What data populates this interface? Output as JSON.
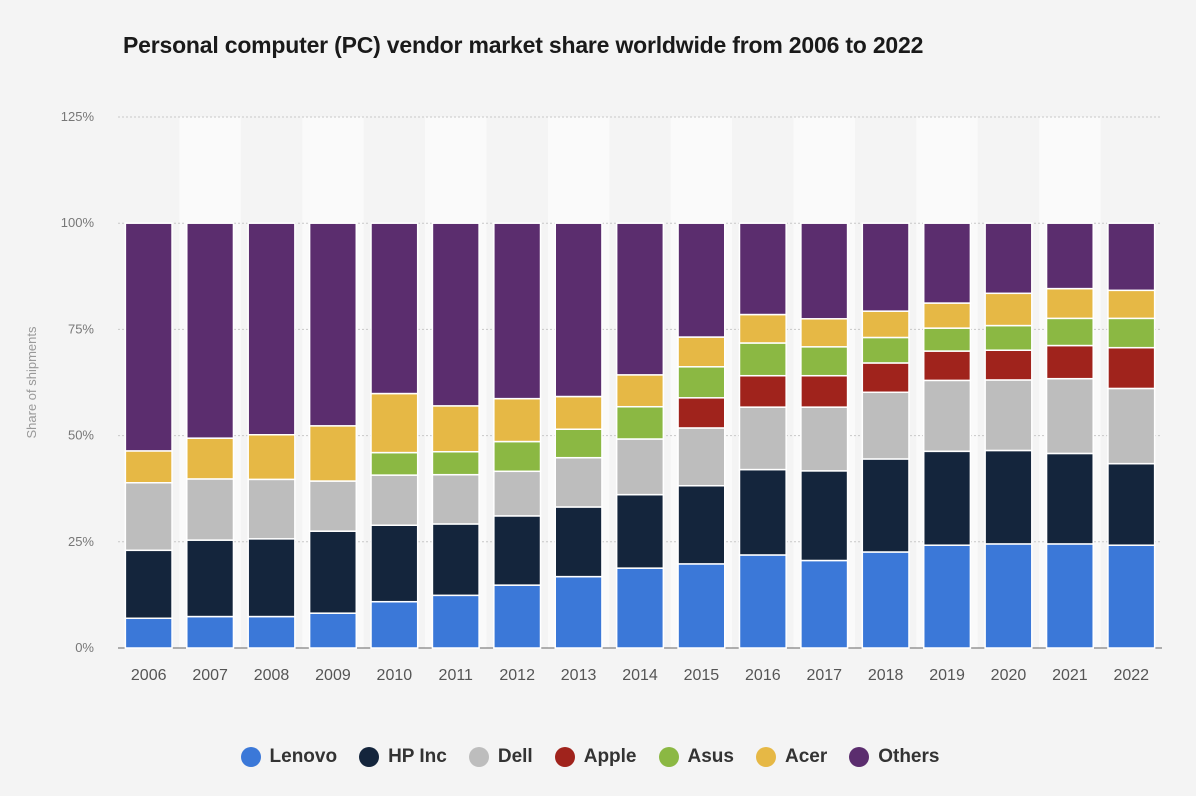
{
  "chart_data": {
    "type": "bar",
    "stacked": true,
    "title": "Personal computer (PC) vendor market share worldwide from 2006 to 2022",
    "xlabel": "",
    "ylabel": "Share of shipments",
    "ylim": [
      0,
      125
    ],
    "yticks": [
      0,
      25,
      50,
      75,
      100,
      125
    ],
    "ytick_labels": [
      "0%",
      "25%",
      "50%",
      "75%",
      "100%",
      "125%"
    ],
    "grid": true,
    "legend_position": "bottom-center",
    "categories": [
      "2006",
      "2007",
      "2008",
      "2009",
      "2010",
      "2011",
      "2012",
      "2013",
      "2014",
      "2015",
      "2016",
      "2017",
      "2018",
      "2019",
      "2020",
      "2021",
      "2022"
    ],
    "series": [
      {
        "name": "Lenovo",
        "color": "#3b78d8",
        "values": [
          7.0,
          7.4,
          7.4,
          8.2,
          10.9,
          12.4,
          14.8,
          16.8,
          18.8,
          19.8,
          21.9,
          20.6,
          22.6,
          24.2,
          24.5,
          24.5,
          24.2
        ]
      },
      {
        "name": "HP Inc",
        "color": "#14253c",
        "values": [
          16.0,
          18.0,
          18.3,
          19.3,
          18.0,
          16.8,
          16.3,
          16.4,
          17.3,
          18.4,
          20.1,
          21.1,
          21.9,
          22.1,
          22.0,
          21.3,
          19.2
        ]
      },
      {
        "name": "Dell",
        "color": "#bdbdbd",
        "values": [
          15.9,
          14.4,
          14.0,
          11.8,
          11.8,
          11.6,
          10.5,
          11.6,
          13.1,
          13.6,
          14.7,
          15.0,
          15.7,
          16.7,
          16.6,
          17.6,
          17.7
        ]
      },
      {
        "name": "Apple",
        "color": "#a0231c",
        "values": [
          0,
          0,
          0,
          0,
          0,
          0,
          0,
          0,
          0,
          7.1,
          7.4,
          7.4,
          6.9,
          6.9,
          7.0,
          7.8,
          9.6
        ]
      },
      {
        "name": "Asus",
        "color": "#8bb843",
        "values": [
          0,
          0,
          0,
          0,
          5.3,
          5.4,
          7.0,
          6.7,
          7.6,
          7.3,
          7.7,
          6.8,
          6.0,
          5.4,
          5.8,
          6.4,
          6.9
        ]
      },
      {
        "name": "Acer",
        "color": "#e6b845",
        "values": [
          7.5,
          9.6,
          10.5,
          13.0,
          13.9,
          10.8,
          10.1,
          7.7,
          7.5,
          7.0,
          6.7,
          6.6,
          6.2,
          5.9,
          7.6,
          7.0,
          6.6
        ]
      },
      {
        "name": "Others",
        "color": "#5b2d6e",
        "values": [
          53.6,
          50.6,
          49.8,
          47.7,
          40.1,
          43.0,
          41.3,
          40.8,
          35.7,
          26.8,
          21.5,
          22.5,
          20.7,
          18.8,
          16.5,
          15.4,
          15.8
        ]
      }
    ]
  }
}
